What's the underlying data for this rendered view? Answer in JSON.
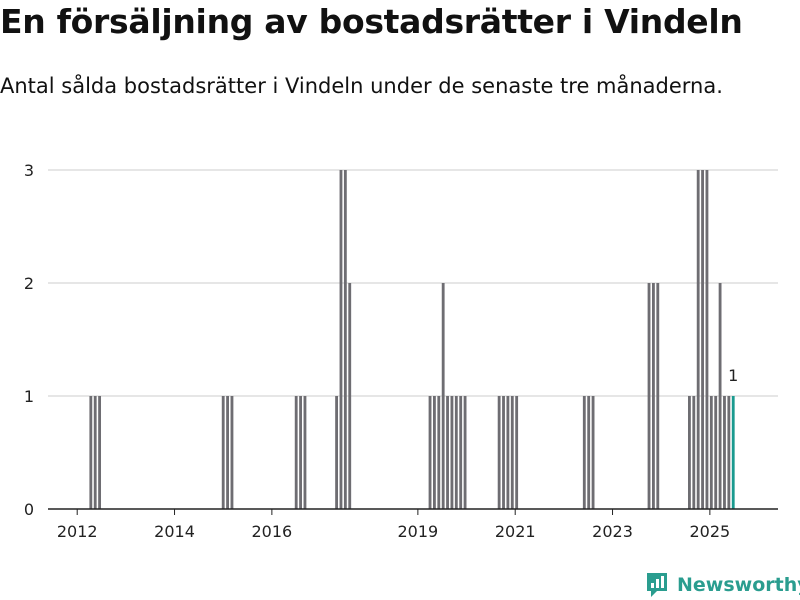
{
  "title": "En försäljning av bostadsrätter i Vindeln",
  "subtitle": "Antal sålda bostadsrätter i Vindeln under de senaste tre månaderna.",
  "brand": {
    "name": "Newsworthy",
    "color": "#2a9d8f",
    "icon": "newsworthy-logo-icon"
  },
  "colors": {
    "bar": "#6e6d72",
    "highlight": "#1a9a8f",
    "grid": "#dddddd",
    "axis": "#222222"
  },
  "chart_data": {
    "type": "bar",
    "xlabel": "",
    "ylabel": "",
    "ylim": [
      0,
      3
    ],
    "yticks": [
      0,
      1,
      2,
      3
    ],
    "xlim": [
      2011.4,
      2026.4
    ],
    "xticks": [
      2012,
      2014,
      2016,
      2019,
      2021,
      2023,
      2025
    ],
    "grid": true,
    "bar_width_years": 0.083,
    "series": [
      {
        "x": [
          2012.28,
          2012.37,
          2012.46,
          2015.0,
          2015.09,
          2015.18,
          2016.5,
          2016.59,
          2016.68,
          2017.33,
          2017.42,
          2017.51,
          2017.6,
          2019.25,
          2019.34,
          2019.43,
          2019.52,
          2019.61,
          2019.7,
          2019.79,
          2019.88,
          2019.97,
          2020.67,
          2020.76,
          2020.85,
          2020.94,
          2021.03,
          2022.42,
          2022.51,
          2022.6,
          2023.75,
          2023.84,
          2023.93,
          2024.58,
          2024.67,
          2024.76,
          2024.85,
          2024.94,
          2025.03,
          2025.12,
          2025.21,
          2025.3,
          2025.39
        ],
        "values": [
          1,
          1,
          1,
          1,
          1,
          1,
          1,
          1,
          1,
          1,
          3,
          3,
          2,
          1,
          1,
          1,
          2,
          1,
          1,
          1,
          1,
          1,
          1,
          1,
          1,
          1,
          1,
          1,
          1,
          1,
          2,
          2,
          2,
          1,
          1,
          3,
          3,
          3,
          1,
          1,
          2,
          1,
          1
        ]
      },
      {
        "x": [
          2025.48
        ],
        "values": [
          1
        ],
        "highlight": true,
        "label": "1"
      }
    ]
  }
}
